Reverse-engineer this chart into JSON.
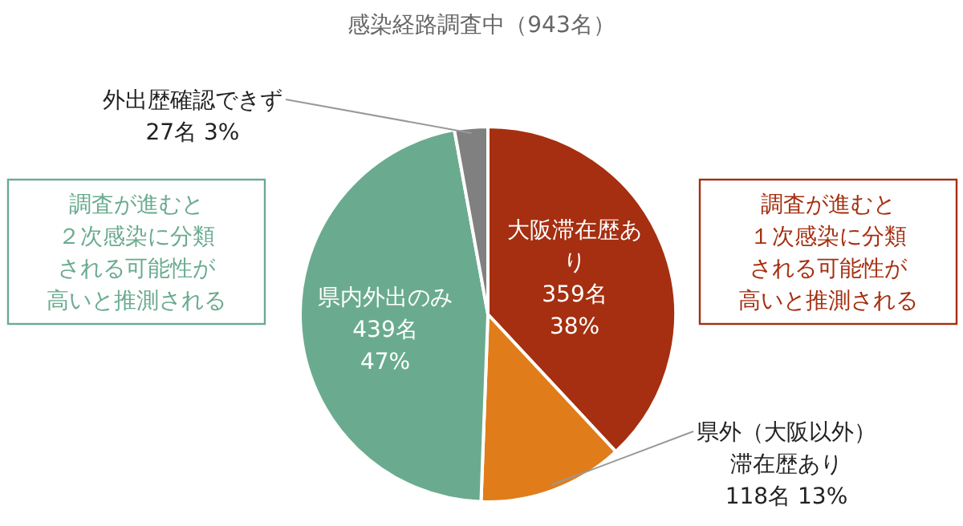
{
  "chart_data": {
    "type": "pie",
    "title": "感染経路調査中（943名）",
    "categories": [
      "大阪滞在歴あり",
      "県外（大阪以外）滞在歴あり",
      "県内外出のみ",
      "外出歴確認できず"
    ],
    "values": [
      359,
      118,
      439,
      27
    ],
    "value_labels": [
      "359名\n38%",
      "118名  13%",
      "439名\n47%",
      "27名   3%"
    ],
    "colors": [
      "#a52f10",
      "#e07d1a",
      "#6aab8f",
      "#808080"
    ],
    "annotations": [
      "調査が進むと２次感染に分類される可能性が高いと推測される",
      "調査が進むと１次感染に分類される可能性が高いと推測される"
    ],
    "legend": false
  }
}
